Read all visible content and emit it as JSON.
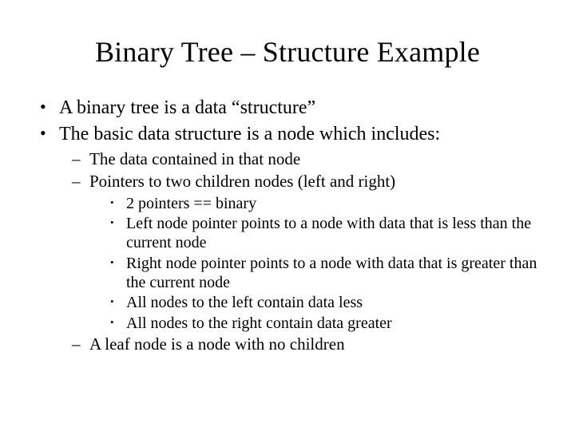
{
  "colors": {
    "background": "#ffffff",
    "text": "#000000"
  },
  "typography": {
    "font_family": "Times New Roman",
    "title_fontsize": 36,
    "lvl1_fontsize": 24,
    "lvl2_fontsize": 21,
    "lvl3_fontsize": 20
  },
  "slide": {
    "title": "Binary Tree – Structure Example",
    "lvl1": {
      "item1": "A binary tree is a data “structure”",
      "item2": "The basic data structure is a node which includes:"
    },
    "lvl2": {
      "item1": "The data contained in that node",
      "item2": "Pointers to two children nodes (left and right)",
      "item3": "A leaf node is a node with no children"
    },
    "lvl3": {
      "item1": "2 pointers == binary",
      "item2": "Left node pointer points to a node with data that is less than the current node",
      "item3": "Right node pointer points to a node with data that is greater than the current node",
      "item4": "All nodes to the left contain data less",
      "item5": "All nodes to the right contain data greater"
    }
  }
}
